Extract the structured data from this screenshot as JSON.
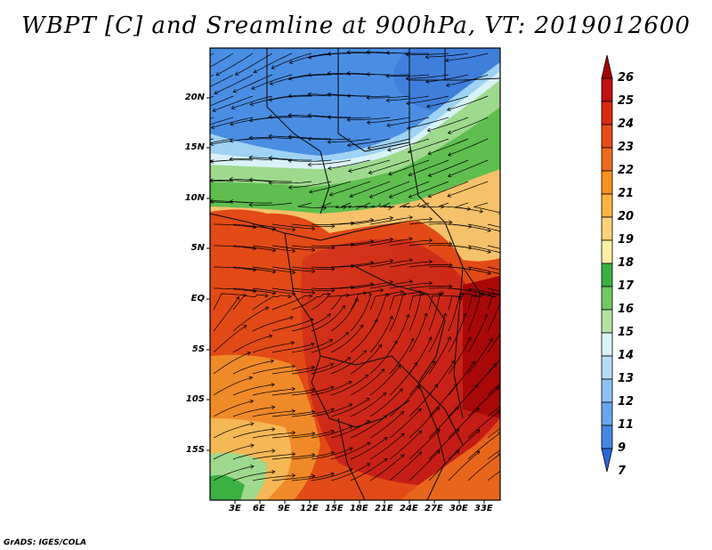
{
  "title": "WBPT [C] and Sreamline at 900hPa, VT: 2019012600",
  "footer": "GrADS: IGES/COLA",
  "map": {
    "variable": "Wet-bulb potential temperature",
    "units": "C",
    "overlay": "Streamlines",
    "level": "900hPa",
    "valid_time": "2019012600",
    "lat_range": [
      -20,
      25
    ],
    "lon_range": [
      0,
      35
    ],
    "lat_ticks": [
      "20N",
      "15N",
      "10N",
      "5N",
      "EQ",
      "5S",
      "10S",
      "15S"
    ],
    "lon_ticks": [
      "3E",
      "6E",
      "9E",
      "12E",
      "15E",
      "18E",
      "21E",
      "24E",
      "27E",
      "30E",
      "33E"
    ]
  },
  "colorbar": {
    "labels": [
      "26",
      "25",
      "24",
      "23",
      "22",
      "21",
      "20",
      "19",
      "18",
      "17",
      "16",
      "15",
      "14",
      "13",
      "12",
      "11",
      "9",
      "7"
    ],
    "colors": [
      "#a50000",
      "#c01010",
      "#d82a10",
      "#e64d15",
      "#ee6a1a",
      "#f7911f",
      "#fbb443",
      "#fdd17a",
      "#fcefa4",
      "#3cb043",
      "#72c863",
      "#b2e2a3",
      "#d9f2f8",
      "#b5dcf7",
      "#8cc3f2",
      "#6aa6ec",
      "#4787e4",
      "#2a66db"
    ]
  }
}
